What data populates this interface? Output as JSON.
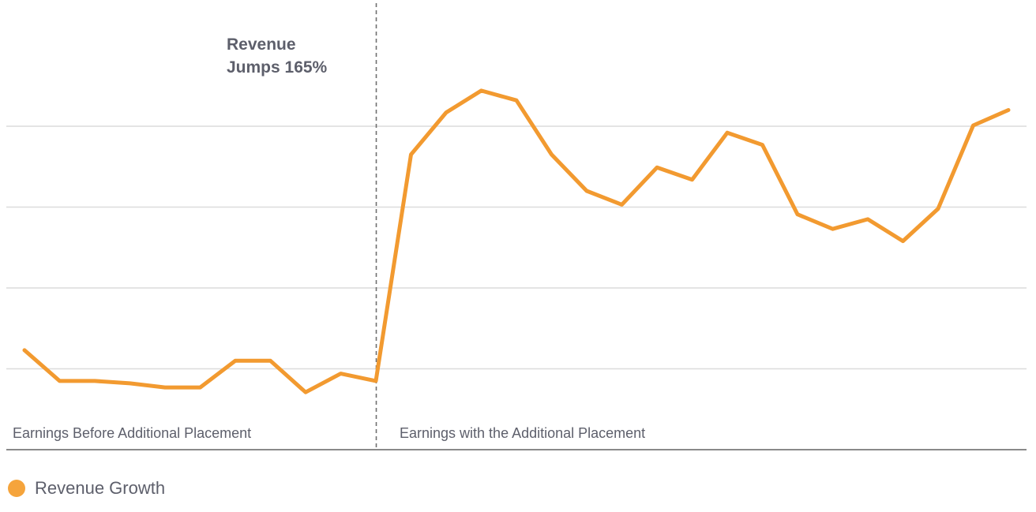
{
  "chart_data": {
    "type": "line",
    "title": "",
    "xlabel": "",
    "ylabel": "",
    "grid": true,
    "legend_position": "bottom-left",
    "x": [
      1,
      2,
      3,
      4,
      5,
      6,
      7,
      8,
      9,
      10,
      11,
      12,
      13,
      14,
      15,
      16,
      17,
      18,
      19,
      20,
      21,
      22,
      23,
      24,
      25,
      26,
      27,
      28,
      29
    ],
    "series": [
      {
        "name": "Revenue Growth",
        "color": "#f29a30",
        "values": [
          1.23,
          0.85,
          0.85,
          0.82,
          0.77,
          0.77,
          1.1,
          1.1,
          0.71,
          0.94,
          0.85,
          3.65,
          4.17,
          4.44,
          4.32,
          3.65,
          3.2,
          3.03,
          3.49,
          3.34,
          3.92,
          3.77,
          2.91,
          2.73,
          2.85,
          2.58,
          2.98,
          4.01,
          4.2
        ]
      }
    ],
    "ylim": [
      0,
      4.97
    ],
    "divider_after_index": 10,
    "annotation": {
      "lines": [
        "Revenue",
        "Jumps 165%"
      ]
    },
    "region_labels": {
      "before": "Earnings Before Additional Placement",
      "after": "Earnings with the Additional Placement"
    }
  },
  "legend": {
    "label": "Revenue Growth",
    "color": "#f5a43c"
  }
}
